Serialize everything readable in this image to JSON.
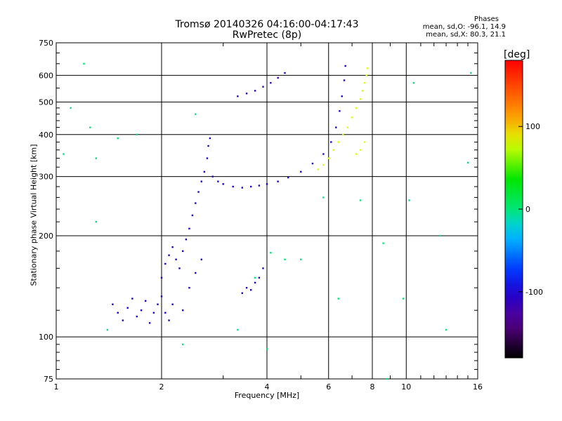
{
  "title_line1": "Tromsø 20140326 04:16:00-04:17:43",
  "title_line2": "RwPretec (8p)",
  "phases": {
    "title": "Phases",
    "o_line": "mean, sd,O: -96.1, 14.9",
    "x_line": "mean, sd,X:  80.3, 21.1"
  },
  "colorbar": {
    "unit": "[deg]",
    "ticks": [
      100,
      0,
      -100
    ],
    "tick_labels": [
      "100",
      "0",
      "-100"
    ],
    "range": [
      -180,
      180
    ]
  },
  "chart_data": {
    "type": "scatter",
    "xlabel": "Frequency [MHz]",
    "ylabel": "Stationary phase Virtual Height [km]",
    "x_scale": "log2",
    "y_scale": "log",
    "xlim": [
      1,
      16
    ],
    "ylim": [
      75,
      750
    ],
    "xticks": [
      1,
      2,
      4,
      6,
      8,
      10,
      16
    ],
    "xtick_labels": [
      "1",
      "2",
      "4",
      "6",
      "8",
      "10",
      "16"
    ],
    "yticks": [
      75,
      100,
      200,
      300,
      400,
      500,
      600,
      750
    ],
    "ytick_labels": [
      "75",
      "100",
      "200",
      "300",
      "400",
      "500",
      "600",
      "750"
    ],
    "grid": true,
    "series": [
      {
        "description": "O-mode / low-frequency E-F1 echoes (blue, about -100 deg)",
        "phase": -100,
        "points": [
          [
            1.45,
            125
          ],
          [
            1.5,
            118
          ],
          [
            1.55,
            112
          ],
          [
            1.6,
            122
          ],
          [
            1.65,
            130
          ],
          [
            1.7,
            115
          ],
          [
            1.75,
            120
          ],
          [
            1.8,
            128
          ],
          [
            1.85,
            110
          ],
          [
            1.9,
            118
          ],
          [
            1.95,
            125
          ],
          [
            2.0,
            132
          ],
          [
            2.05,
            118
          ],
          [
            2.1,
            112
          ],
          [
            2.15,
            125
          ],
          [
            2.0,
            150
          ],
          [
            2.05,
            165
          ],
          [
            2.1,
            175
          ],
          [
            2.15,
            185
          ],
          [
            2.2,
            170
          ],
          [
            2.25,
            160
          ],
          [
            2.3,
            180
          ],
          [
            2.35,
            195
          ],
          [
            2.4,
            210
          ],
          [
            2.45,
            230
          ],
          [
            2.5,
            250
          ],
          [
            2.55,
            270
          ],
          [
            2.6,
            290
          ],
          [
            2.65,
            310
          ],
          [
            2.7,
            340
          ],
          [
            2.72,
            370
          ],
          [
            2.75,
            390
          ],
          [
            2.8,
            300
          ],
          [
            2.9,
            290
          ],
          [
            3.0,
            285
          ],
          [
            3.2,
            280
          ],
          [
            3.4,
            278
          ],
          [
            3.6,
            280
          ],
          [
            3.8,
            282
          ],
          [
            4.0,
            285
          ],
          [
            4.3,
            290
          ],
          [
            4.6,
            298
          ],
          [
            5.0,
            310
          ],
          [
            5.4,
            328
          ],
          [
            5.8,
            350
          ],
          [
            6.1,
            380
          ],
          [
            6.3,
            420
          ],
          [
            6.45,
            470
          ],
          [
            6.55,
            520
          ],
          [
            6.65,
            580
          ],
          [
            6.7,
            640
          ],
          [
            3.4,
            135
          ],
          [
            3.5,
            140
          ],
          [
            3.6,
            138
          ],
          [
            3.7,
            145
          ],
          [
            3.8,
            150
          ],
          [
            3.9,
            160
          ],
          [
            2.3,
            120
          ],
          [
            2.4,
            140
          ],
          [
            2.5,
            155
          ],
          [
            2.6,
            170
          ]
        ]
      },
      {
        "description": "X-mode F-layer echoes (yellow-green, about +80 deg)",
        "phase": 80,
        "points": [
          [
            5.6,
            315
          ],
          [
            5.8,
            325
          ],
          [
            6.0,
            340
          ],
          [
            6.2,
            360
          ],
          [
            6.4,
            380
          ],
          [
            6.6,
            400
          ],
          [
            6.8,
            420
          ],
          [
            7.0,
            450
          ],
          [
            7.2,
            480
          ],
          [
            7.4,
            510
          ],
          [
            7.5,
            540
          ],
          [
            7.6,
            570
          ],
          [
            7.7,
            600
          ],
          [
            7.75,
            630
          ],
          [
            7.6,
            380
          ],
          [
            7.4,
            360
          ],
          [
            7.2,
            350
          ]
        ]
      },
      {
        "description": "Upper F-layer trace near 500-560 km (blue)",
        "phase": -110,
        "points": [
          [
            3.3,
            520
          ],
          [
            3.5,
            530
          ],
          [
            3.7,
            540
          ],
          [
            3.9,
            555
          ],
          [
            4.1,
            570
          ],
          [
            4.3,
            590
          ],
          [
            4.5,
            610
          ]
        ]
      },
      {
        "description": "Isolated scattered echoes",
        "phase": 0,
        "points": [
          [
            1.05,
            350
          ],
          [
            1.1,
            480
          ],
          [
            1.2,
            650
          ],
          [
            1.25,
            420
          ],
          [
            1.3,
            340
          ],
          [
            1.3,
            220
          ],
          [
            1.4,
            105
          ],
          [
            1.5,
            390
          ],
          [
            1.7,
            400
          ],
          [
            2.3,
            95
          ],
          [
            2.5,
            460
          ],
          [
            3.3,
            105
          ],
          [
            3.7,
            150
          ],
          [
            4.1,
            178
          ],
          [
            4.0,
            92
          ],
          [
            4.5,
            170
          ],
          [
            5.0,
            170
          ],
          [
            5.8,
            260
          ],
          [
            6.4,
            130
          ],
          [
            7.4,
            255
          ],
          [
            8.6,
            190
          ],
          [
            8.8,
            75
          ],
          [
            9.8,
            130
          ],
          [
            10.2,
            255
          ],
          [
            10.5,
            570
          ],
          [
            12.5,
            200
          ],
          [
            13.0,
            105
          ],
          [
            15.0,
            330
          ],
          [
            15.3,
            610
          ]
        ]
      }
    ]
  }
}
